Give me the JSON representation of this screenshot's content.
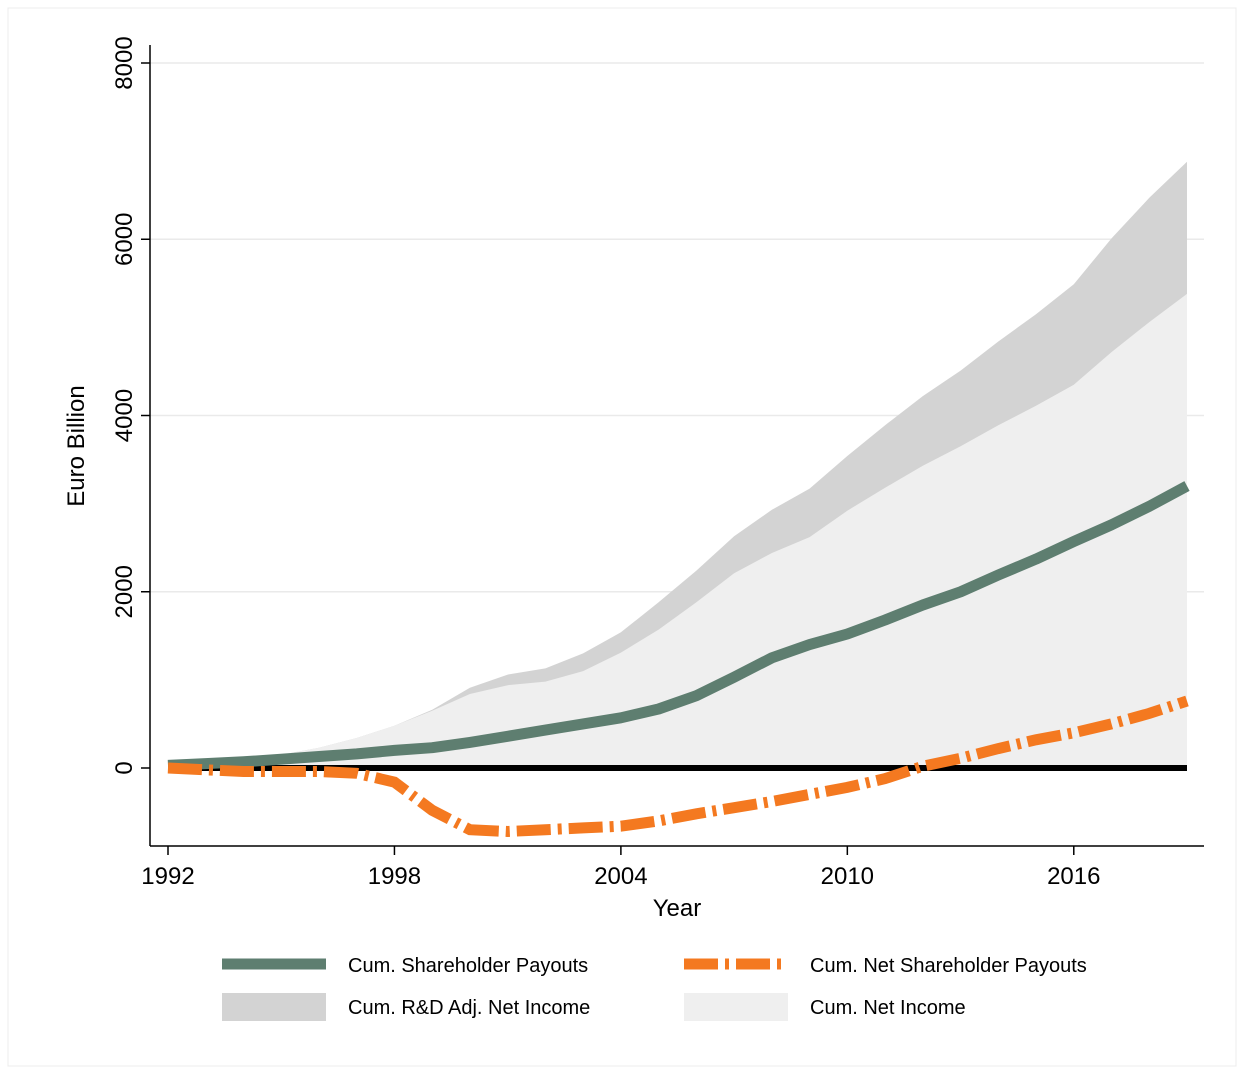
{
  "chart_data": {
    "type": "area",
    "xlabel": "Year",
    "ylabel": "Euro Billion",
    "xlim": [
      1992,
      2019
    ],
    "ylim": [
      -900,
      8200
    ],
    "xticks": [
      1992,
      1998,
      2004,
      2010,
      2016
    ],
    "yticks": [
      0,
      2000,
      4000,
      6000,
      8000
    ],
    "grid": "horizontal",
    "legend_position": "bottom",
    "x": [
      1992,
      1993,
      1994,
      1995,
      1996,
      1997,
      1998,
      1999,
      2000,
      2001,
      2002,
      2003,
      2004,
      2005,
      2006,
      2007,
      2008,
      2009,
      2010,
      2011,
      2012,
      2013,
      2014,
      2015,
      2016,
      2017,
      2018,
      2019
    ],
    "series": [
      {
        "name": "Cum. Shareholder Payouts",
        "kind": "line",
        "color": "#5e7e70",
        "style": "solid",
        "values": [
          30,
          50,
          70,
          100,
          130,
          160,
          200,
          230,
          290,
          360,
          430,
          500,
          570,
          670,
          820,
          1030,
          1250,
          1400,
          1520,
          1680,
          1850,
          2000,
          2190,
          2370,
          2570,
          2760,
          2970,
          3200
        ]
      },
      {
        "name": "Cum. Net Shareholder Payouts",
        "kind": "line",
        "color": "#f47920",
        "style": "dash-dot",
        "values": [
          0,
          -20,
          -40,
          -40,
          -40,
          -60,
          -160,
          -480,
          -700,
          -720,
          -700,
          -680,
          -660,
          -600,
          -520,
          -450,
          -380,
          -300,
          -220,
          -120,
          20,
          110,
          220,
          320,
          400,
          500,
          620,
          760
        ]
      },
      {
        "name": "Cum. R&D Adj. Net Income",
        "kind": "area",
        "color": "#d3d3d3",
        "values": [
          40,
          60,
          100,
          150,
          230,
          340,
          480,
          660,
          910,
          1060,
          1130,
          1300,
          1540,
          1880,
          2240,
          2630,
          2930,
          3170,
          3540,
          3890,
          4220,
          4510,
          4840,
          5150,
          5490,
          6010,
          6470,
          6880
        ]
      },
      {
        "name": "Cum. Net Income",
        "kind": "area",
        "color": "#efefef",
        "values": [
          40,
          60,
          100,
          150,
          230,
          340,
          480,
          650,
          840,
          940,
          980,
          1100,
          1310,
          1570,
          1880,
          2210,
          2440,
          2620,
          2920,
          3180,
          3430,
          3650,
          3890,
          4110,
          4350,
          4720,
          5060,
          5380
        ]
      }
    ]
  }
}
